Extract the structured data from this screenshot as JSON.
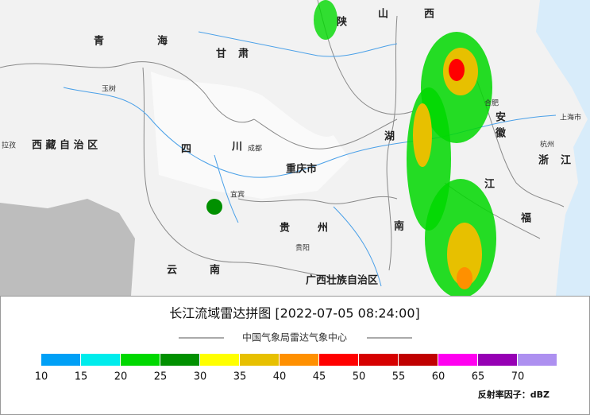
{
  "map": {
    "title": "长江流域雷达拼图 [2022-07-05 08:24:00]",
    "subtitle": "中国气象局雷达气象中心",
    "unit": "反射率因子：dBZ",
    "labels": [
      "青",
      "海",
      "甘",
      "肃",
      "西 藏 自 治 区",
      "四",
      "川",
      "重庆市",
      "贵",
      "州",
      "云",
      "南",
      "广西壮族自治区",
      "湖",
      "南",
      "陕",
      "山",
      "西",
      "浙",
      "江",
      "福",
      "成都",
      "玉树",
      "拉孜",
      "杭州",
      "上海市",
      "合肥",
      "宜宾",
      "贵阳",
      "安",
      "徽",
      "江"
    ],
    "legend": {
      "values": [
        10,
        15,
        20,
        25,
        30,
        35,
        40,
        45,
        50,
        55,
        60,
        65,
        70
      ],
      "colors": [
        "#00a0f6",
        "#00ecec",
        "#00d800",
        "#019000",
        "#ffff00",
        "#e7c000",
        "#ff9000",
        "#ff0000",
        "#d60000",
        "#c00000",
        "#ff00f0",
        "#9600b4",
        "#ad90f0"
      ]
    }
  }
}
